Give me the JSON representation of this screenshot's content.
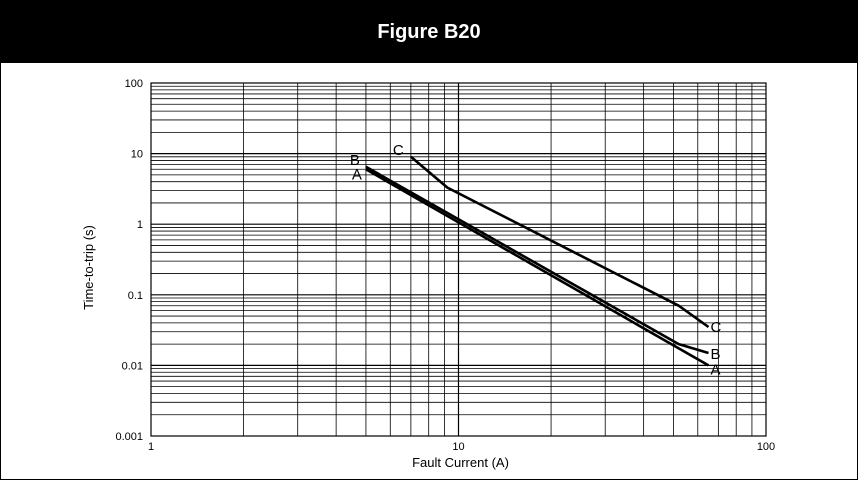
{
  "figure": {
    "title": "Figure B20"
  },
  "chart_data": {
    "type": "line",
    "title": "Figure B20",
    "xlabel": "Fault Current (A)",
    "ylabel": "Time-to-trip (s)",
    "x_scale": "log",
    "y_scale": "log",
    "xlim": [
      1,
      100
    ],
    "ylim": [
      0.001,
      100
    ],
    "grid": true,
    "x_ticks": [
      {
        "value": 1,
        "label": "1"
      },
      {
        "value": 10,
        "label": "10"
      },
      {
        "value": 100,
        "label": "100"
      }
    ],
    "y_ticks": [
      {
        "value": 100,
        "label": "100"
      },
      {
        "value": 10,
        "label": "10"
      },
      {
        "value": 1,
        "label": "1"
      },
      {
        "value": 0.1,
        "label": "0.1"
      },
      {
        "value": 0.01,
        "label": "0.01"
      },
      {
        "value": 0.001,
        "label": "0.001"
      }
    ],
    "series": [
      {
        "name": "A",
        "points": [
          [
            5,
            6.0
          ],
          [
            65,
            0.01
          ]
        ],
        "start_label": "A",
        "end_label": "A"
      },
      {
        "name": "B",
        "points": [
          [
            5,
            6.5
          ],
          [
            52,
            0.02
          ],
          [
            65,
            0.015
          ]
        ],
        "start_label": "B",
        "end_label": "B"
      },
      {
        "name": "C",
        "points": [
          [
            7,
            9.0
          ],
          [
            9.2,
            3.3
          ],
          [
            52,
            0.07
          ],
          [
            65,
            0.035
          ]
        ],
        "start_label": "C",
        "end_label": "C"
      }
    ]
  }
}
